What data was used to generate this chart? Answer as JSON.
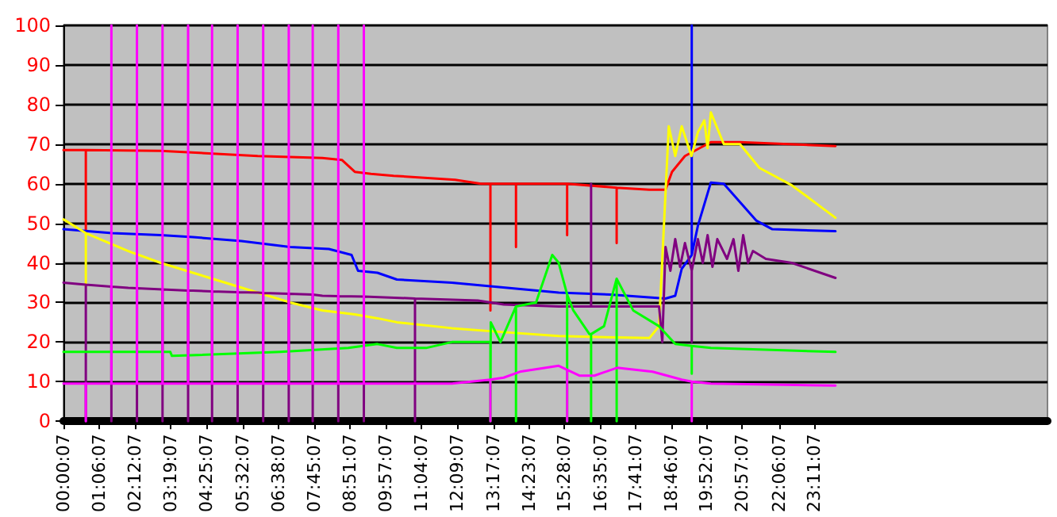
{
  "chart_data": {
    "type": "line",
    "grid": "y",
    "marker": "none",
    "line_style": "solid",
    "ylim": [
      0,
      100
    ],
    "yticks": [
      0,
      10,
      20,
      30,
      40,
      50,
      60,
      70,
      80,
      90,
      100
    ],
    "xlim": [
      0,
      30.4
    ],
    "xticks": [
      {
        "value": 0.0019,
        "label": "00:00:07"
      },
      {
        "value": 1.1019,
        "label": "01:06:07"
      },
      {
        "value": 2.2019,
        "label": "02:12:07"
      },
      {
        "value": 3.3186,
        "label": "03:19:07"
      },
      {
        "value": 4.4186,
        "label": "04:25:07"
      },
      {
        "value": 5.5353,
        "label": "05:32:07"
      },
      {
        "value": 6.6353,
        "label": "06:38:07"
      },
      {
        "value": 7.7519,
        "label": "07:45:07"
      },
      {
        "value": 8.8519,
        "label": "08:51:07"
      },
      {
        "value": 9.9519,
        "label": "09:57:07"
      },
      {
        "value": 11.0686,
        "label": "11:04:07"
      },
      {
        "value": 12.1519,
        "label": "12:09:07"
      },
      {
        "value": 13.2853,
        "label": "13:17:07"
      },
      {
        "value": 14.3853,
        "label": "14:23:07"
      },
      {
        "value": 15.4686,
        "label": "15:28:07"
      },
      {
        "value": 16.5853,
        "label": "16:35:07"
      },
      {
        "value": 17.6853,
        "label": "17:41:07"
      },
      {
        "value": 18.7686,
        "label": "18:46:07"
      },
      {
        "value": 19.8686,
        "label": "19:52:07"
      },
      {
        "value": 20.9519,
        "label": "20:57:07"
      },
      {
        "value": 22.1019,
        "label": "22:06:07"
      },
      {
        "value": 23.1853,
        "label": "23:11:07"
      }
    ],
    "series": [
      {
        "color": "#ff0000",
        "x": [
          0,
          0.69,
          0.69,
          0.69,
          3,
          6,
          8,
          8.6,
          9,
          9.5,
          10.2,
          12.1,
          12.9,
          13.19,
          13.19,
          13.19,
          13.98,
          13.98,
          13.98,
          15.56,
          15.56,
          15.56,
          17.09,
          17.09,
          17.09,
          18.1,
          18.6,
          18.8,
          19.2,
          20,
          20.9,
          23.85
        ],
        "values": [
          68.5,
          68.5,
          48,
          68.5,
          68.3,
          67,
          66.5,
          66,
          63,
          62.5,
          62,
          61,
          60,
          60,
          28,
          60,
          60,
          44,
          60,
          60,
          47,
          60,
          59,
          45,
          59,
          58.5,
          58.5,
          63,
          67,
          70.5,
          70.5,
          69.5
        ]
      },
      {
        "color": "#0000ff",
        "x": [
          0,
          1.5,
          3,
          4,
          5.5,
          7,
          8.2,
          8.9,
          9.1,
          9.7,
          10.3,
          12,
          15.3,
          16.9,
          18.6,
          18.9,
          19.1,
          19.41,
          19.41,
          19.41,
          19.6,
          20,
          20.4,
          21.4,
          21.9,
          23.85
        ],
        "values": [
          48.5,
          47.5,
          47,
          46.5,
          45.5,
          44,
          43.5,
          42,
          38,
          37.5,
          35.8,
          35,
          32.5,
          32,
          31,
          31.7,
          38.5,
          42,
          100,
          42,
          49.4,
          60.3,
          60,
          50.7,
          48.5,
          48
        ]
      },
      {
        "color": "#ffff00",
        "x": [
          0,
          0.69,
          0.69,
          0.69,
          2,
          3,
          4,
          5,
          6,
          7,
          8,
          9,
          9.7,
          10.3,
          12,
          13.6,
          15.3,
          18.1,
          18.4,
          18.5,
          18.7,
          18.9,
          19.1,
          19.4,
          19.6,
          19.8,
          19.9,
          20,
          20.4,
          20.9,
          21.5,
          22.5,
          23.85
        ],
        "values": [
          51,
          47.5,
          34,
          47.5,
          43,
          40,
          37.5,
          35,
          32.5,
          30,
          28,
          27,
          26,
          25,
          23.5,
          22.5,
          21.5,
          21,
          24,
          41,
          74.5,
          67,
          74.5,
          67,
          73,
          76,
          69,
          78,
          70,
          70,
          64,
          59.6,
          51.4
        ]
      },
      {
        "color": "#800080",
        "x": [
          0,
          0.69,
          0.69,
          0.69,
          1.48,
          1.48,
          1.48,
          2,
          2.27,
          2.27,
          2.27,
          3.06,
          3.06,
          3.06,
          3.85,
          3.85,
          3.85,
          4,
          4.59,
          4.59,
          4.59,
          5.38,
          5.38,
          5.38,
          6,
          6.17,
          6.17,
          6.17,
          6.96,
          6.96,
          6.96,
          7.7,
          7.7,
          7.7,
          8,
          8.49,
          8.49,
          8.49,
          9.28,
          9.28,
          9.28,
          10.86,
          10.86,
          10.86,
          12.8,
          13.6,
          15.3,
          16.3,
          16.3,
          16.3,
          18.4,
          18.5,
          18.6,
          18.75,
          18.9,
          19.05,
          19.2,
          19.41,
          19.41,
          19.41,
          19.6,
          19.75,
          19.9,
          20.05,
          20.2,
          20.5,
          20.7,
          20.85,
          21,
          21.15,
          21.3,
          21.7,
          22.5,
          23.85
        ],
        "values": [
          35,
          34.5,
          0,
          34.5,
          34,
          0,
          34,
          33.7,
          33.6,
          0,
          33.6,
          33.3,
          0,
          33.3,
          33,
          0,
          33,
          33,
          32.8,
          0,
          32.8,
          32.6,
          0,
          32.6,
          32.5,
          32.4,
          0,
          32.4,
          32.2,
          0,
          32.2,
          32,
          0,
          32,
          31.7,
          31.6,
          0,
          31.6,
          31.5,
          0,
          31.5,
          31,
          0,
          31,
          30.5,
          29.5,
          29,
          29,
          60,
          29,
          29,
          20,
          44,
          38,
          46,
          39,
          45,
          38,
          20,
          38,
          46,
          40,
          47,
          39,
          46,
          41,
          46,
          38,
          47,
          40,
          43,
          41,
          40,
          36.2
        ]
      },
      {
        "color": "#00ff00",
        "x": [
          0,
          3.3,
          3.35,
          6.7,
          8.8,
          9.7,
          10.3,
          11.2,
          12,
          13,
          13.19,
          13.19,
          13.2,
          13.5,
          13.98,
          13.98,
          13.98,
          14.6,
          15.1,
          15.3,
          15.56,
          15.56,
          15.56,
          15.75,
          16.25,
          16.3,
          16.3,
          16.3,
          16.7,
          17.09,
          17.09,
          17.09,
          17.6,
          18.4,
          18.9,
          19.41,
          19.41,
          19.41,
          20,
          23.85
        ],
        "values": [
          17.5,
          17.5,
          16.5,
          17.5,
          18.5,
          19.5,
          18.5,
          18.5,
          20,
          20,
          20,
          0,
          25,
          20,
          29,
          0,
          29,
          30,
          42,
          40,
          32,
          0,
          32,
          28,
          22,
          22,
          0,
          22,
          24,
          36,
          0,
          36,
          28,
          24,
          19.5,
          19,
          12,
          19,
          18.5,
          17.5
        ]
      },
      {
        "color": "#ff00ff",
        "x": [
          0,
          0.69,
          0.69,
          0.69,
          1.48,
          1.48,
          1.48,
          2.27,
          2.27,
          2.27,
          3.06,
          3.06,
          3.06,
          3.85,
          3.85,
          3.85,
          4.59,
          4.59,
          4.59,
          5.38,
          5.38,
          5.38,
          6.17,
          6.17,
          6.17,
          6.96,
          6.96,
          6.96,
          7.7,
          7.7,
          7.7,
          8.49,
          8.49,
          8.49,
          9.28,
          9.28,
          9.28,
          12,
          13.19,
          13.19,
          13.19,
          13.6,
          14.1,
          15.3,
          15.56,
          15.56,
          15.56,
          15.95,
          16.4,
          17.1,
          18.2,
          19.1,
          19.41,
          19.41,
          19.41,
          20,
          23.85
        ],
        "values": [
          9.5,
          9.5,
          0,
          9.5,
          9.5,
          100,
          9.5,
          9.5,
          100,
          9.5,
          9.5,
          100,
          9.5,
          9.5,
          100,
          9.5,
          9.5,
          100,
          9.5,
          9.5,
          100,
          9.5,
          9.5,
          100,
          9.5,
          9.5,
          100,
          9.5,
          9.5,
          100,
          9.5,
          9.5,
          100,
          9.5,
          9.5,
          100,
          9.5,
          9.5,
          10.5,
          0,
          10.5,
          11,
          12.5,
          14,
          13,
          0,
          13,
          11.5,
          11.5,
          13.5,
          12.5,
          10.5,
          10,
          0,
          10,
          9.5,
          9
        ]
      }
    ]
  }
}
